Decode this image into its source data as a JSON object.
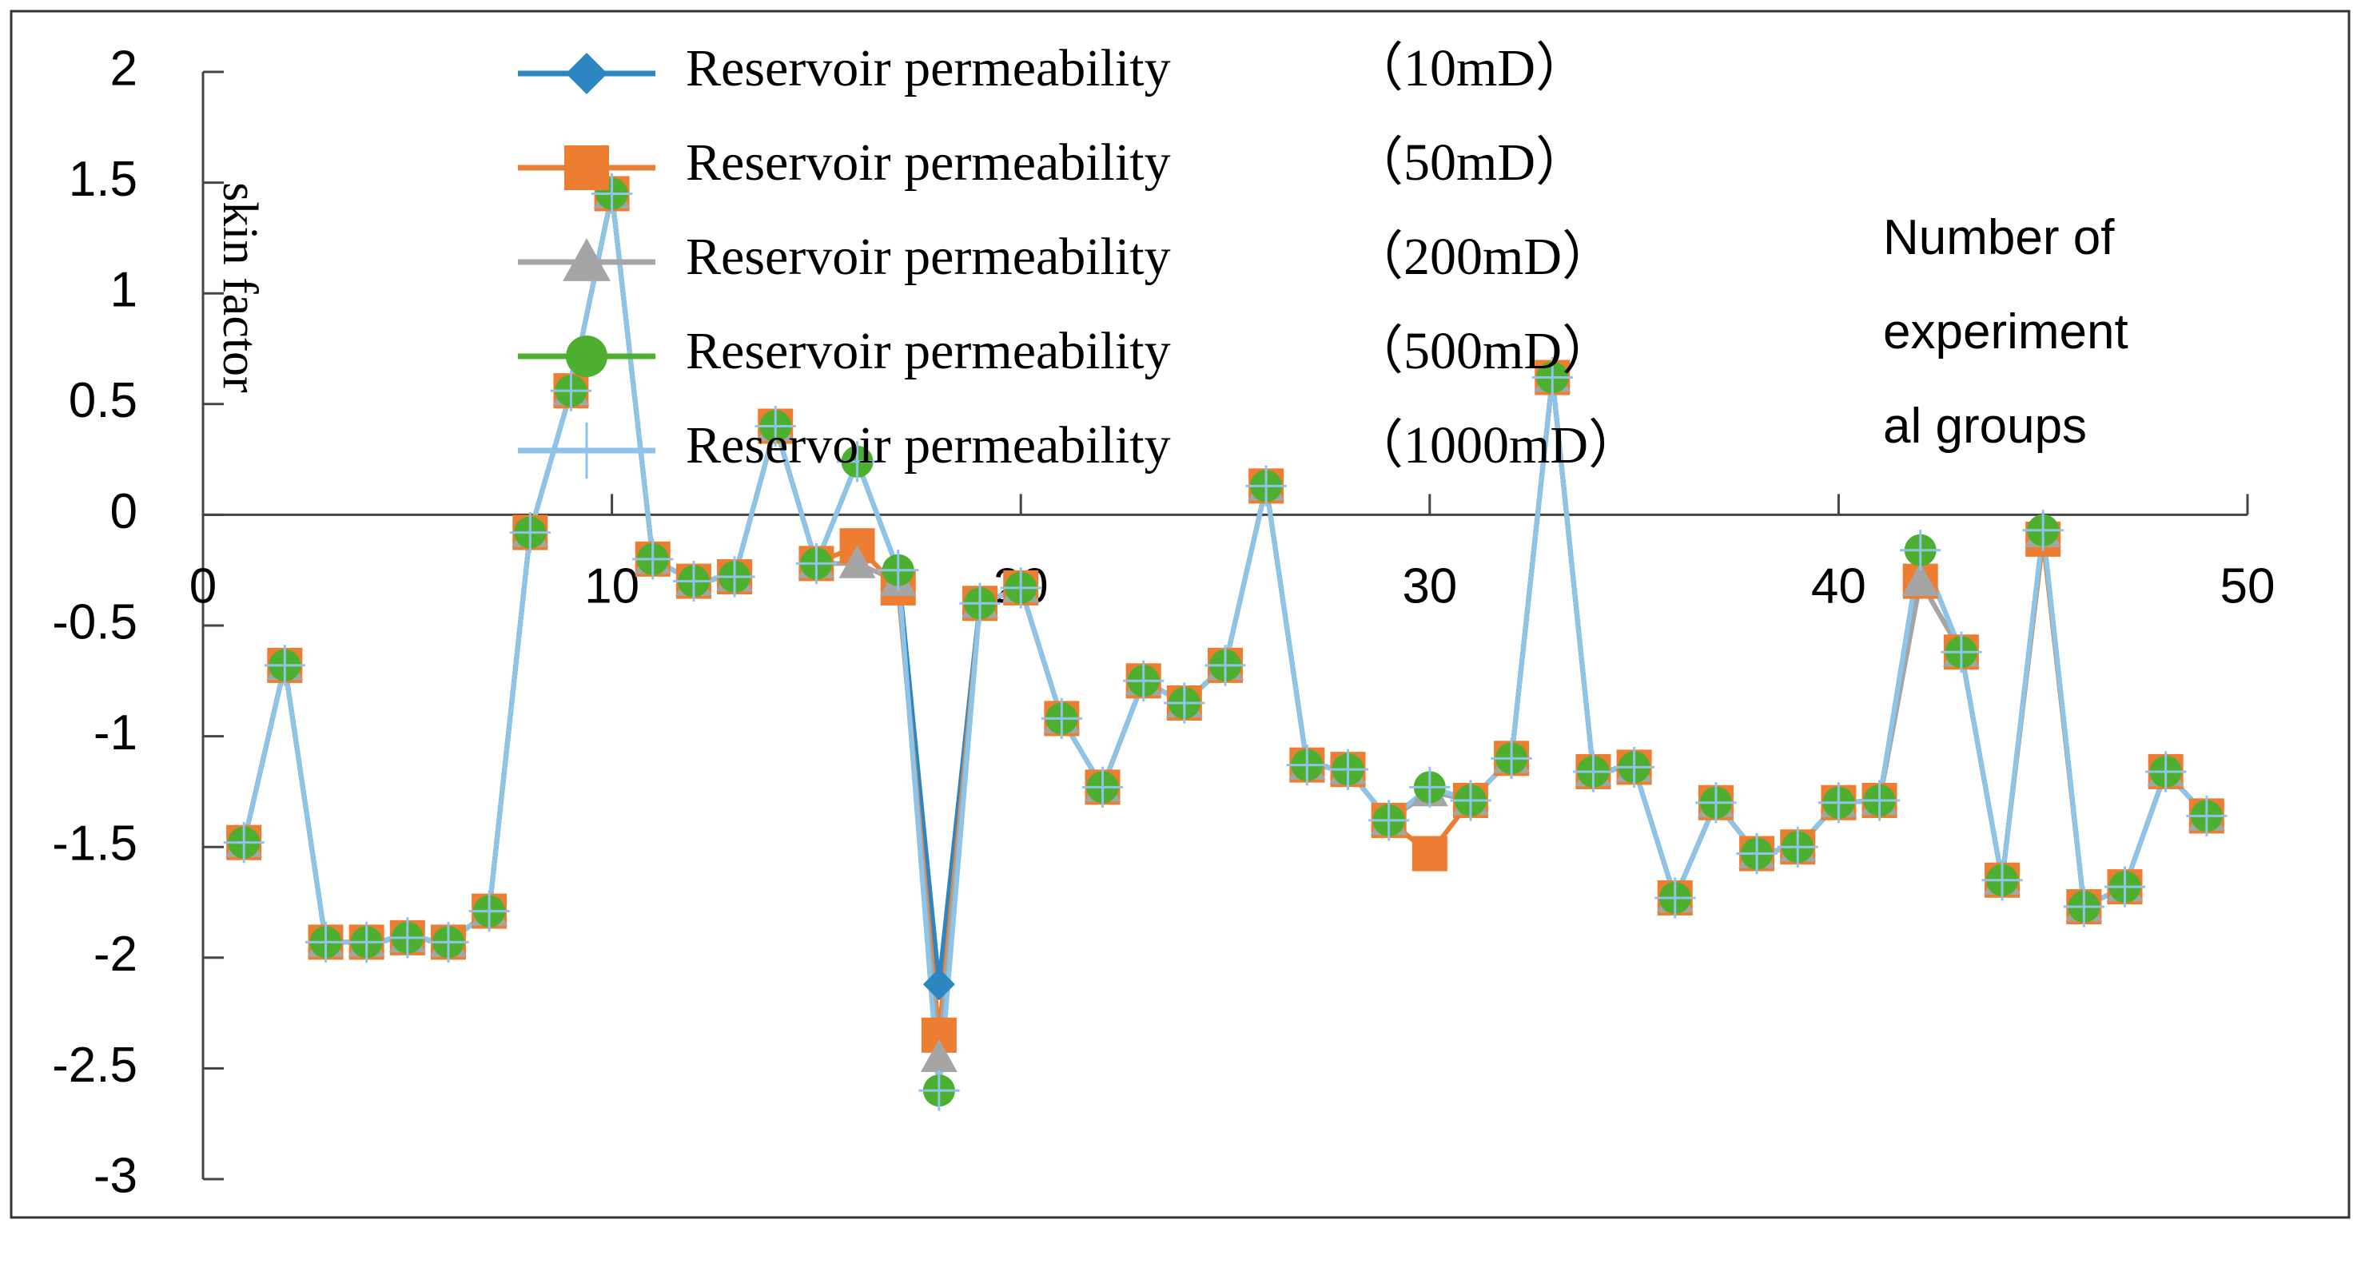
{
  "chart_data": {
    "type": "line",
    "title": "",
    "ylabel": "skin factor",
    "xlabel": "Number of experimental groups",
    "xlabel_lines": [
      "Number of",
      "experiment",
      "al groups"
    ],
    "xlim": [
      0,
      50
    ],
    "ylim": [
      -3,
      2
    ],
    "xticks": [
      0,
      10,
      20,
      30,
      40,
      50
    ],
    "yticks": [
      2,
      1.5,
      1,
      0.5,
      0,
      -0.5,
      -1,
      -1.5,
      -2,
      -2.5,
      -3
    ],
    "xtick_labels": [
      "0",
      "10",
      "20",
      "30",
      "40",
      "50"
    ],
    "ytick_labels": [
      "2",
      "1.5",
      "1",
      "0.5",
      "0",
      "-0.5",
      "-1",
      "-1.5",
      "-2",
      "-2.5",
      "-3"
    ],
    "grid": false,
    "legend_position": "top-center",
    "x": [
      1,
      2,
      3,
      4,
      5,
      6,
      7,
      8,
      9,
      10,
      11,
      12,
      13,
      14,
      15,
      16,
      17,
      18,
      19,
      20,
      21,
      22,
      23,
      24,
      25,
      26,
      27,
      28,
      29,
      30,
      31,
      32,
      33,
      34,
      35,
      36,
      37,
      38,
      39,
      40,
      41,
      42,
      43,
      44,
      45,
      46,
      47,
      48,
      49
    ],
    "series": [
      {
        "name": "Reservoir permeability  （10mD）",
        "label_main": "Reservoir permeability",
        "label_unit": "（10mD）",
        "color": "#2E86C1",
        "marker": "diamond",
        "values": [
          -1.48,
          -0.68,
          -1.93,
          -1.93,
          -1.91,
          -1.93,
          -1.79,
          -0.08,
          0.56,
          1.45,
          -0.2,
          -0.3,
          -0.28,
          0.4,
          -0.22,
          0.24,
          -0.25,
          -2.12,
          -0.4,
          -0.33,
          -0.92,
          -1.23,
          -0.75,
          -0.85,
          -0.68,
          0.13,
          -1.13,
          -1.15,
          -1.38,
          -1.23,
          -1.29,
          -1.1,
          0.62,
          -1.16,
          -1.14,
          -1.73,
          -1.3,
          -1.53,
          -1.5,
          -1.3,
          -1.29,
          -0.16,
          -0.62,
          -1.65,
          -0.07,
          -1.77,
          -1.68,
          -1.16,
          -1.36
        ]
      },
      {
        "name": "Reservoir permeability  （50mD）",
        "label_main": "Reservoir permeability",
        "label_unit": "（50mD）",
        "color": "#ED7D31",
        "marker": "square",
        "values": [
          -1.48,
          -0.68,
          -1.93,
          -1.93,
          -1.91,
          -1.93,
          -1.79,
          -0.08,
          0.56,
          1.45,
          -0.2,
          -0.3,
          -0.28,
          0.4,
          -0.22,
          -0.14,
          -0.33,
          -2.35,
          -0.4,
          -0.33,
          -0.92,
          -1.23,
          -0.75,
          -0.85,
          -0.68,
          0.13,
          -1.13,
          -1.15,
          -1.38,
          -1.53,
          -1.29,
          -1.1,
          0.62,
          -1.16,
          -1.14,
          -1.73,
          -1.3,
          -1.53,
          -1.5,
          -1.3,
          -1.29,
          -0.3,
          -0.62,
          -1.65,
          -0.11,
          -1.77,
          -1.68,
          -1.16,
          -1.36
        ]
      },
      {
        "name": "Reservoir permeability  （200mD）",
        "label_main": "Reservoir permeability",
        "label_unit": "（200mD）",
        "color": "#A5A5A5",
        "marker": "triangle",
        "values": [
          -1.48,
          -0.68,
          -1.93,
          -1.93,
          -1.91,
          -1.93,
          -1.79,
          -0.08,
          0.56,
          1.45,
          -0.2,
          -0.3,
          -0.28,
          0.4,
          -0.22,
          -0.22,
          -0.3,
          -2.45,
          -0.4,
          -0.33,
          -0.92,
          -1.23,
          -0.75,
          -0.85,
          -0.68,
          0.13,
          -1.13,
          -1.15,
          -1.38,
          -1.25,
          -1.29,
          -1.1,
          0.62,
          -1.16,
          -1.14,
          -1.73,
          -1.3,
          -1.53,
          -1.5,
          -1.3,
          -1.29,
          -0.3,
          -0.62,
          -1.65,
          -0.08,
          -1.77,
          -1.68,
          -1.16,
          -1.36
        ]
      },
      {
        "name": "Reservoir permeability  （500mD）",
        "label_main": "Reservoir permeability",
        "label_unit": "（500mD）",
        "color": "#4CAF2F",
        "marker": "circle",
        "values": [
          -1.48,
          -0.68,
          -1.93,
          -1.93,
          -1.91,
          -1.93,
          -1.79,
          -0.08,
          0.56,
          1.45,
          -0.2,
          -0.3,
          -0.28,
          0.4,
          -0.22,
          0.24,
          -0.25,
          -2.6,
          -0.4,
          -0.33,
          -0.92,
          -1.23,
          -0.75,
          -0.85,
          -0.68,
          0.13,
          -1.13,
          -1.15,
          -1.38,
          -1.23,
          -1.29,
          -1.1,
          0.62,
          -1.16,
          -1.14,
          -1.73,
          -1.3,
          -1.53,
          -1.5,
          -1.3,
          -1.29,
          -0.16,
          -0.62,
          -1.65,
          -0.07,
          -1.77,
          -1.68,
          -1.16,
          -1.36
        ]
      },
      {
        "name": "Reservoir permeability  （1000mD）",
        "label_main": "Reservoir permeability",
        "label_unit": "（1000mD）",
        "color": "#8EC3EA",
        "marker": "plus",
        "values": [
          -1.48,
          -0.68,
          -1.93,
          -1.93,
          -1.91,
          -1.93,
          -1.79,
          -0.08,
          0.56,
          1.45,
          -0.2,
          -0.3,
          -0.28,
          0.4,
          -0.22,
          0.24,
          -0.25,
          -2.6,
          -0.4,
          -0.33,
          -0.92,
          -1.23,
          -0.75,
          -0.85,
          -0.68,
          0.13,
          -1.13,
          -1.15,
          -1.38,
          -1.23,
          -1.29,
          -1.1,
          0.62,
          -1.16,
          -1.14,
          -1.73,
          -1.3,
          -1.53,
          -1.5,
          -1.3,
          -1.29,
          -0.16,
          -0.62,
          -1.65,
          -0.07,
          -1.77,
          -1.68,
          -1.16,
          -1.36
        ]
      }
    ]
  }
}
